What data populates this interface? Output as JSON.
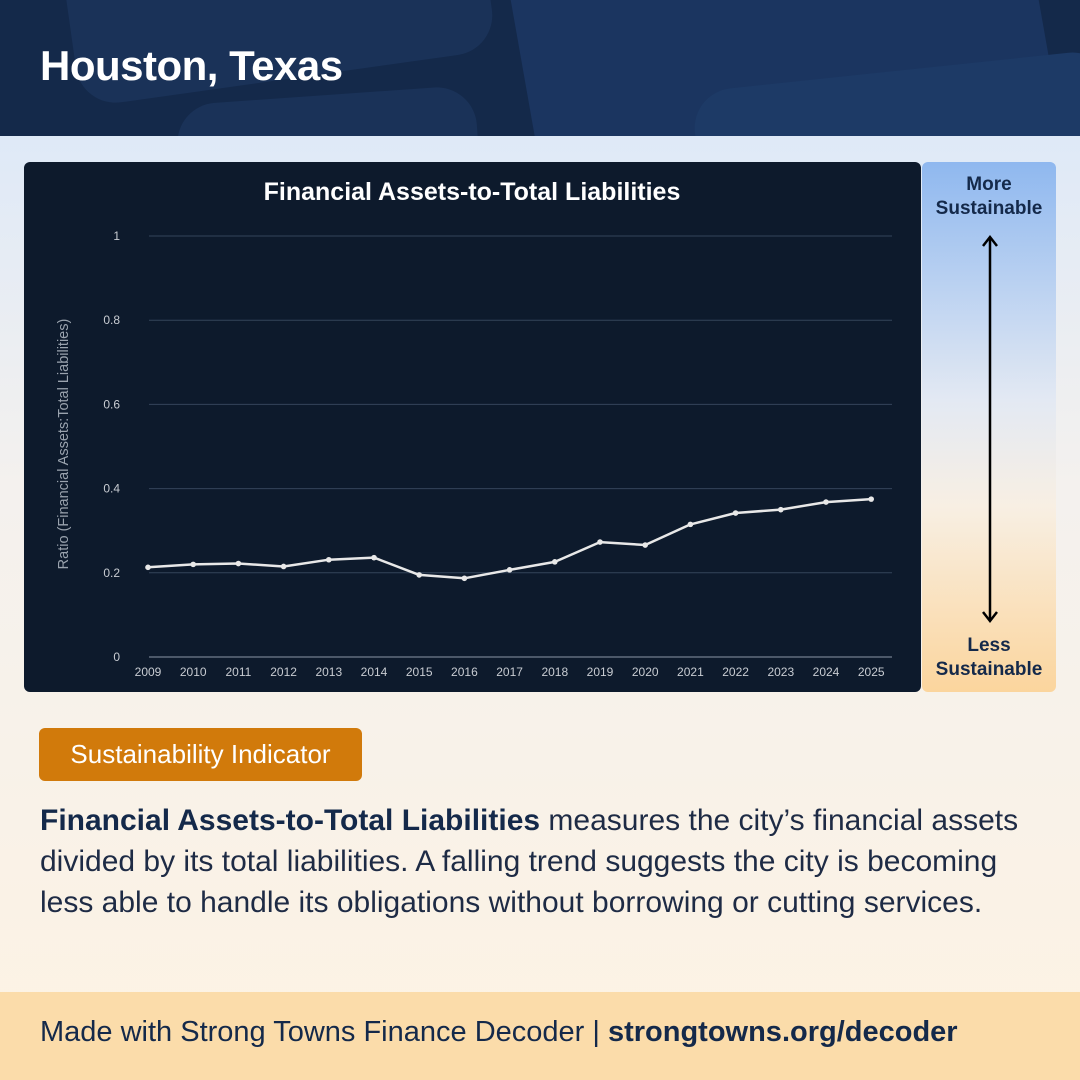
{
  "header": {
    "title": "Houston, Texas"
  },
  "chart_data": {
    "type": "line",
    "title": "Financial Assets-to-Total Liabilities",
    "xlabel": "",
    "ylabel": "Ratio (Financial Assets:Total Liabilities)",
    "x": [
      "2009",
      "2010",
      "2011",
      "2012",
      "2013",
      "2014",
      "2015",
      "2016",
      "2017",
      "2018",
      "2019",
      "2020",
      "2021",
      "2022",
      "2023",
      "2024",
      "2025"
    ],
    "values": [
      0.213,
      0.22,
      0.222,
      0.215,
      0.231,
      0.236,
      0.195,
      0.187,
      0.207,
      0.226,
      0.273,
      0.266,
      0.315,
      0.342,
      0.35,
      0.368,
      0.375
    ],
    "ylim": [
      0,
      1
    ],
    "yticks": [
      "0",
      "0.2",
      "0.4",
      "0.6",
      "0.8",
      "1"
    ],
    "ytick_values": [
      0,
      0.2,
      0.4,
      0.6,
      0.8,
      1
    ],
    "grid": true,
    "legend": "none",
    "colors": {
      "background": "#0d1a2c",
      "line": "#e8e8e8",
      "grid": "#34445a",
      "text": "#c8ccd2"
    }
  },
  "scale": {
    "top_line1": "More",
    "top_line2": "Sustainable",
    "bottom_line1": "Less",
    "bottom_line2": "Sustainable"
  },
  "indicator": {
    "badge": "Sustainability Indicator"
  },
  "description": {
    "term": "Financial Assets-to-Total Liabilities",
    "body": " measures the city’s financial assets divided by its total liabilities. A falling trend suggests the city is becoming less able to handle its obligations without borrowing or cutting services."
  },
  "footer": {
    "text": "Made with Strong Towns Finance Decoder | ",
    "url": "strongtowns.org/decoder"
  },
  "colors": {
    "header_bg": "#14294a",
    "badge_bg": "#d17a0b",
    "footer_bg": "#fbdcaa",
    "text_dark": "#14294a"
  }
}
